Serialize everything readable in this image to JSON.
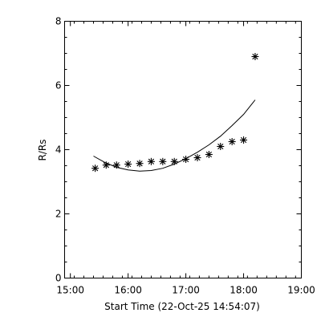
{
  "chart_data": {
    "type": "scatter",
    "title": "",
    "xlabel": "Start Time (22-Oct-25 14:54:07)",
    "ylabel": "R/Rs",
    "x_ticks": [
      "15:00",
      "16:00",
      "17:00",
      "18:00",
      "19:00"
    ],
    "x_tick_values": [
      15.0,
      16.0,
      17.0,
      18.0,
      19.0
    ],
    "y_ticks": [
      "0",
      "2",
      "4",
      "6",
      "8"
    ],
    "y_tick_values": [
      0,
      2,
      4,
      6,
      8
    ],
    "xlim": [
      14.9,
      19.0
    ],
    "ylim": [
      0,
      8
    ],
    "grid": false,
    "marker": "asterisk",
    "series": [
      {
        "x": [
          15.43,
          15.62,
          15.8,
          16.0,
          16.2,
          16.4,
          16.6,
          16.8,
          17.0,
          17.2,
          17.4,
          17.6,
          17.8,
          18.0,
          18.2
        ],
        "y": [
          3.42,
          3.52,
          3.52,
          3.55,
          3.57,
          3.63,
          3.63,
          3.63,
          3.7,
          3.75,
          3.85,
          4.1,
          4.25,
          4.3,
          6.9
        ]
      }
    ],
    "fit_curve": {
      "x": [
        15.4,
        15.6,
        15.8,
        16.0,
        16.2,
        16.4,
        16.6,
        16.8,
        17.0,
        17.2,
        17.4,
        17.6,
        17.8,
        18.0,
        18.2
      ],
      "y": [
        3.8,
        3.6,
        3.45,
        3.37,
        3.33,
        3.35,
        3.42,
        3.55,
        3.72,
        3.92,
        4.15,
        4.42,
        4.75,
        5.1,
        5.55
      ]
    }
  }
}
